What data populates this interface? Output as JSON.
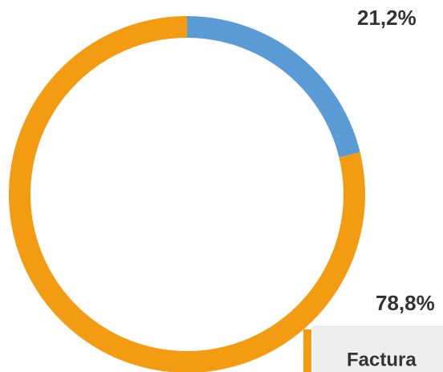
{
  "chart_data": {
    "type": "pie",
    "hole": true,
    "categories": [
      null,
      "Factura"
    ],
    "values": [
      21.2,
      78.8
    ],
    "value_labels": [
      "21,2%",
      "78,8%"
    ],
    "colors": [
      "#5b9bd5",
      "#f39c12"
    ]
  }
}
